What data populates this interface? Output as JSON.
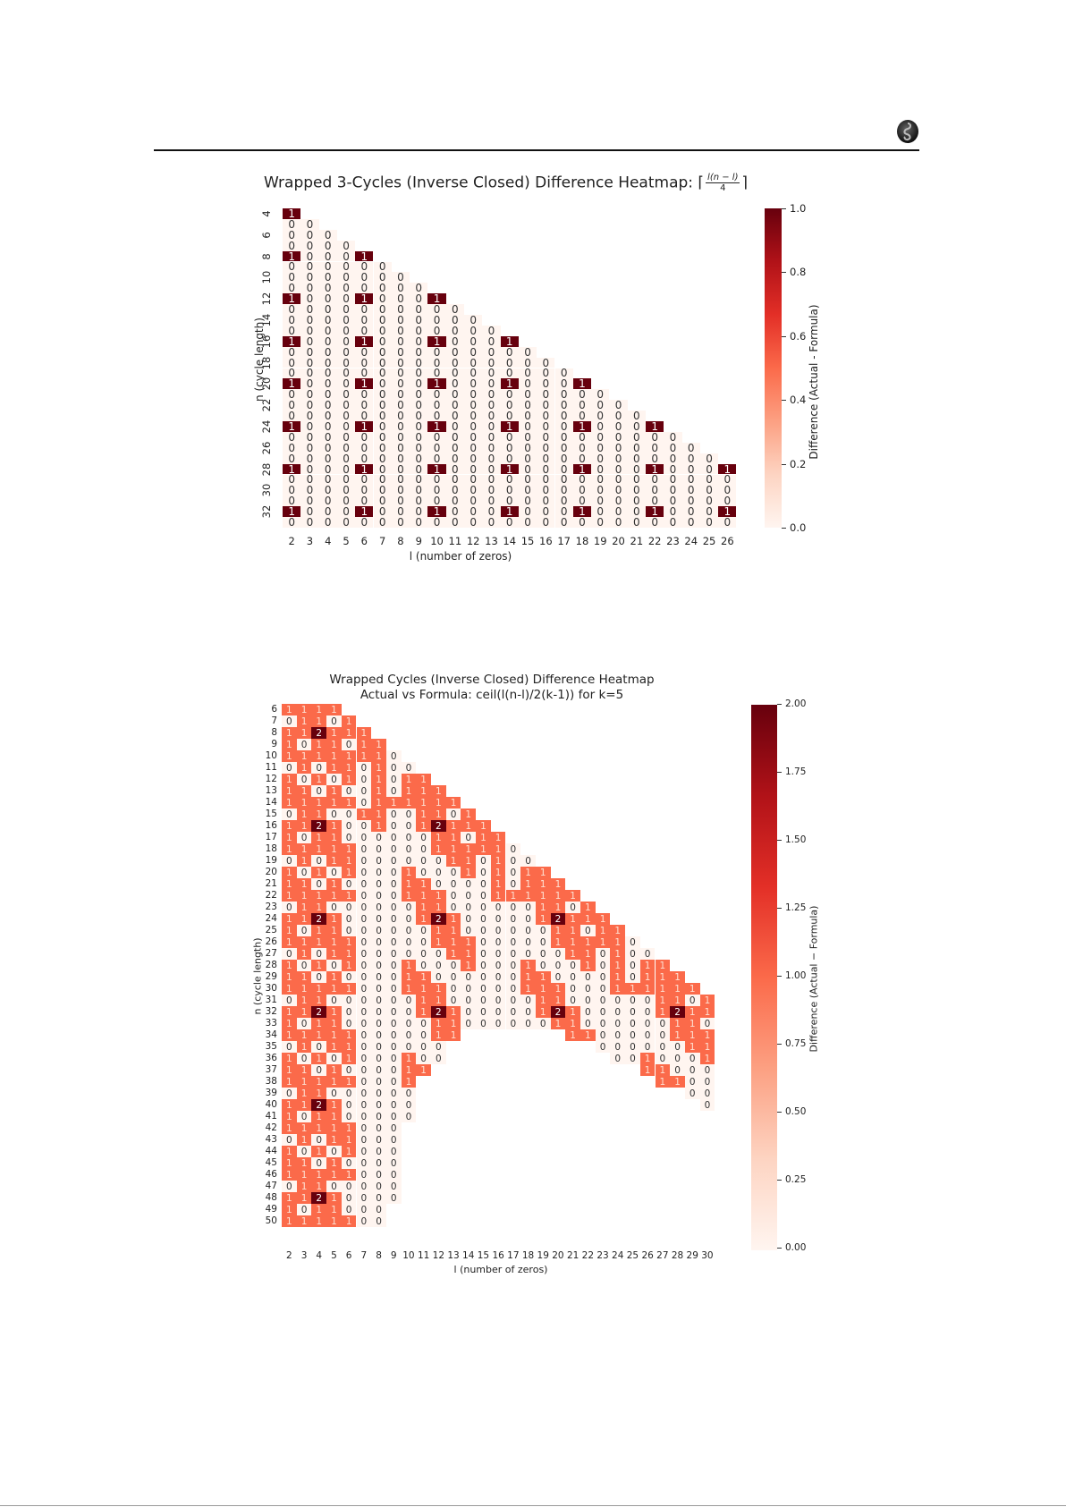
{
  "page": {
    "header_icon": "serpent-logo-icon"
  },
  "chart_data": [
    {
      "type": "heatmap",
      "title": "Wrapped 3-Cycles (Inverse Closed) Difference Heatmap: ⌈l(n − l)/4⌉",
      "title_prefix": "Wrapped 3-Cycles (Inverse Closed) Difference Heatmap: ⌈",
      "title_frac_num": "l(n − l)",
      "title_frac_den": "4",
      "title_suffix": "⌉",
      "xlabel": "l (number of zeros)",
      "ylabel": "n (cycle length)",
      "x": [
        2,
        3,
        4,
        5,
        6,
        7,
        8,
        9,
        10,
        11,
        12,
        13,
        14,
        15,
        16,
        17,
        18,
        19,
        20,
        21,
        22,
        23,
        24,
        25,
        26
      ],
      "y": [
        4,
        5,
        6,
        7,
        8,
        9,
        10,
        11,
        12,
        13,
        14,
        15,
        16,
        17,
        18,
        19,
        20,
        21,
        22,
        23,
        24,
        25,
        26,
        27,
        28,
        29,
        30,
        31,
        32,
        33
      ],
      "y_tick_labels": [
        4,
        6,
        8,
        10,
        12,
        14,
        16,
        18,
        20,
        22,
        24,
        26,
        28,
        30,
        32
      ],
      "rule": "cell exists for 2 <= l <= min(n-2, 26); value = 1 if n % 4 == 0 and l % 4 == 2, else 0",
      "colorbar": {
        "label": "Difference (Actual - Formula)",
        "min": 0.0,
        "max": 1.0,
        "ticks": [
          "1.0",
          "0.8",
          "0.6",
          "0.4",
          "0.2",
          "0.0"
        ],
        "colormap": "Reds"
      },
      "annotated": true
    },
    {
      "type": "heatmap",
      "title": "Wrapped Cycles (Inverse Closed) Difference Heatmap",
      "subtitle": "Actual vs Formula: ceil(l(n-l)/2(k-1)) for k=5",
      "xlabel": "l (number of zeros)",
      "ylabel": "n (cycle length)",
      "x": [
        2,
        3,
        4,
        5,
        6,
        7,
        8,
        9,
        10,
        11,
        12,
        13,
        14,
        15,
        16,
        17,
        18,
        19,
        20,
        21,
        22,
        23,
        24,
        25,
        26,
        27,
        28,
        29,
        30
      ],
      "colorbar": {
        "label": "Difference (Actual − Formula)",
        "min": 0.0,
        "max": 2.0,
        "ticks": [
          "2.00",
          "1.75",
          "1.50",
          "1.25",
          "1.00",
          "0.75",
          "0.50",
          "0.25",
          "0.00"
        ],
        "colormap": "Reds"
      },
      "annotated": true,
      "rows_note": "each row lists values starting at l=2; null = empty cell",
      "rows": {
        "6": [
          1,
          1,
          1,
          1
        ],
        "7": [
          0,
          1,
          1,
          0,
          1
        ],
        "8": [
          1,
          1,
          2,
          1,
          1,
          1
        ],
        "9": [
          1,
          0,
          1,
          1,
          0,
          1,
          1
        ],
        "10": [
          1,
          1,
          1,
          1,
          1,
          1,
          1,
          0
        ],
        "11": [
          0,
          1,
          0,
          1,
          1,
          0,
          1,
          0,
          0
        ],
        "12": [
          1,
          0,
          1,
          0,
          1,
          0,
          1,
          0,
          1,
          1
        ],
        "13": [
          1,
          1,
          0,
          1,
          0,
          0,
          1,
          0,
          1,
          1,
          1
        ],
        "14": [
          1,
          1,
          1,
          1,
          1,
          0,
          1,
          1,
          1,
          1,
          1,
          1
        ],
        "15": [
          0,
          1,
          1,
          0,
          0,
          1,
          1,
          0,
          0,
          1,
          1,
          0,
          1
        ],
        "16": [
          1,
          1,
          2,
          1,
          0,
          0,
          1,
          0,
          0,
          1,
          2,
          1,
          1,
          1
        ],
        "17": [
          1,
          0,
          1,
          1,
          0,
          0,
          0,
          0,
          0,
          0,
          1,
          1,
          0,
          1,
          1
        ],
        "18": [
          1,
          1,
          1,
          1,
          1,
          0,
          0,
          0,
          0,
          0,
          1,
          1,
          1,
          1,
          1,
          0
        ],
        "19": [
          0,
          1,
          0,
          1,
          1,
          0,
          0,
          0,
          0,
          0,
          0,
          1,
          1,
          0,
          1,
          0,
          0
        ],
        "20": [
          1,
          0,
          1,
          0,
          1,
          0,
          0,
          0,
          1,
          0,
          0,
          0,
          1,
          0,
          1,
          0,
          1,
          1
        ],
        "21": [
          1,
          1,
          0,
          1,
          0,
          0,
          0,
          0,
          1,
          1,
          0,
          0,
          0,
          0,
          1,
          0,
          1,
          1,
          1
        ],
        "22": [
          1,
          1,
          1,
          1,
          1,
          0,
          0,
          0,
          1,
          1,
          1,
          0,
          0,
          0,
          1,
          1,
          1,
          1,
          1,
          1
        ],
        "23": [
          0,
          1,
          1,
          0,
          0,
          0,
          0,
          0,
          0,
          1,
          1,
          0,
          0,
          0,
          0,
          0,
          0,
          1,
          1,
          0,
          1
        ],
        "24": [
          1,
          1,
          2,
          1,
          0,
          0,
          0,
          0,
          0,
          1,
          2,
          1,
          0,
          0,
          0,
          0,
          0,
          1,
          2,
          1,
          1,
          1
        ],
        "25": [
          1,
          0,
          1,
          1,
          0,
          0,
          0,
          0,
          0,
          0,
          1,
          1,
          0,
          0,
          0,
          0,
          0,
          0,
          1,
          1,
          0,
          1,
          1
        ],
        "26": [
          1,
          1,
          1,
          1,
          1,
          0,
          0,
          0,
          0,
          0,
          1,
          1,
          1,
          0,
          0,
          0,
          0,
          0,
          1,
          1,
          1,
          1,
          1,
          0
        ],
        "27": [
          0,
          1,
          0,
          1,
          1,
          0,
          0,
          0,
          0,
          0,
          0,
          1,
          1,
          0,
          0,
          0,
          0,
          0,
          0,
          1,
          1,
          0,
          1,
          0,
          0
        ],
        "28": [
          1,
          0,
          1,
          0,
          1,
          0,
          0,
          0,
          1,
          0,
          0,
          0,
          1,
          0,
          0,
          0,
          1,
          0,
          0,
          0,
          1,
          0,
          1,
          0,
          1,
          1
        ],
        "29": [
          1,
          1,
          0,
          1,
          0,
          0,
          0,
          0,
          1,
          1,
          0,
          0,
          0,
          0,
          0,
          0,
          1,
          1,
          0,
          0,
          0,
          0,
          1,
          0,
          1,
          1,
          1
        ],
        "30": [
          1,
          1,
          1,
          1,
          1,
          0,
          0,
          0,
          1,
          1,
          1,
          0,
          0,
          0,
          0,
          0,
          1,
          1,
          1,
          0,
          0,
          0,
          1,
          1,
          1,
          1,
          1,
          1
        ],
        "31": [
          0,
          1,
          1,
          0,
          0,
          0,
          0,
          0,
          0,
          1,
          1,
          0,
          0,
          0,
          0,
          0,
          0,
          1,
          1,
          0,
          0,
          0,
          0,
          0,
          0,
          1,
          1,
          0,
          1
        ],
        "32": [
          1,
          1,
          2,
          1,
          0,
          0,
          0,
          0,
          0,
          1,
          2,
          1,
          0,
          0,
          0,
          0,
          0,
          1,
          2,
          1,
          0,
          0,
          0,
          0,
          0,
          1,
          2,
          1,
          1
        ],
        "33": [
          1,
          0,
          1,
          1,
          0,
          0,
          0,
          0,
          0,
          0,
          1,
          1,
          0,
          0,
          0,
          0,
          0,
          0,
          1,
          1,
          0,
          0,
          0,
          0,
          0,
          0,
          1,
          1,
          0
        ],
        "34": [
          1,
          1,
          1,
          1,
          1,
          0,
          0,
          0,
          0,
          0,
          1,
          1,
          null,
          null,
          null,
          null,
          null,
          null,
          null,
          1,
          1,
          0,
          0,
          0,
          0,
          0,
          1,
          1,
          1
        ],
        "35": [
          0,
          1,
          0,
          1,
          1,
          0,
          0,
          0,
          0,
          0,
          0,
          null,
          null,
          null,
          null,
          null,
          null,
          null,
          null,
          null,
          null,
          0,
          0,
          0,
          0,
          0,
          0,
          1,
          1
        ],
        "36": [
          1,
          0,
          1,
          0,
          1,
          0,
          0,
          0,
          1,
          0,
          0,
          null,
          null,
          null,
          null,
          null,
          null,
          null,
          null,
          null,
          null,
          null,
          0,
          0,
          1,
          0,
          0,
          0,
          1
        ],
        "37": [
          1,
          1,
          0,
          1,
          0,
          0,
          0,
          0,
          1,
          1,
          null,
          null,
          null,
          null,
          null,
          null,
          null,
          null,
          null,
          null,
          null,
          null,
          null,
          null,
          1,
          1,
          0,
          0,
          0
        ],
        "38": [
          1,
          1,
          1,
          1,
          1,
          0,
          0,
          0,
          1,
          null,
          null,
          null,
          null,
          null,
          null,
          null,
          null,
          null,
          null,
          null,
          null,
          null,
          null,
          null,
          null,
          1,
          1,
          0,
          0
        ],
        "39": [
          0,
          1,
          1,
          0,
          0,
          0,
          0,
          0,
          0,
          null,
          null,
          null,
          null,
          null,
          null,
          null,
          null,
          null,
          null,
          null,
          null,
          null,
          null,
          null,
          null,
          null,
          null,
          0,
          0
        ],
        "40": [
          1,
          1,
          2,
          1,
          0,
          0,
          0,
          0,
          0,
          null,
          null,
          null,
          null,
          null,
          null,
          null,
          null,
          null,
          null,
          null,
          null,
          null,
          null,
          null,
          null,
          null,
          null,
          null,
          0
        ],
        "41": [
          1,
          0,
          1,
          1,
          0,
          0,
          0,
          0,
          0
        ],
        "42": [
          1,
          1,
          1,
          1,
          1,
          0,
          0,
          0
        ],
        "43": [
          0,
          1,
          0,
          1,
          1,
          0,
          0,
          0
        ],
        "44": [
          1,
          0,
          1,
          0,
          1,
          0,
          0,
          0
        ],
        "45": [
          1,
          1,
          0,
          1,
          0,
          0,
          0,
          0
        ],
        "46": [
          1,
          1,
          1,
          1,
          1,
          0,
          0,
          0
        ],
        "47": [
          0,
          1,
          1,
          0,
          0,
          0,
          0,
          0
        ],
        "48": [
          1,
          1,
          2,
          1,
          0,
          0,
          0,
          0
        ],
        "49": [
          1,
          0,
          1,
          1,
          0,
          0,
          0
        ],
        "50": [
          1,
          1,
          1,
          1,
          1,
          0,
          0
        ]
      }
    }
  ]
}
